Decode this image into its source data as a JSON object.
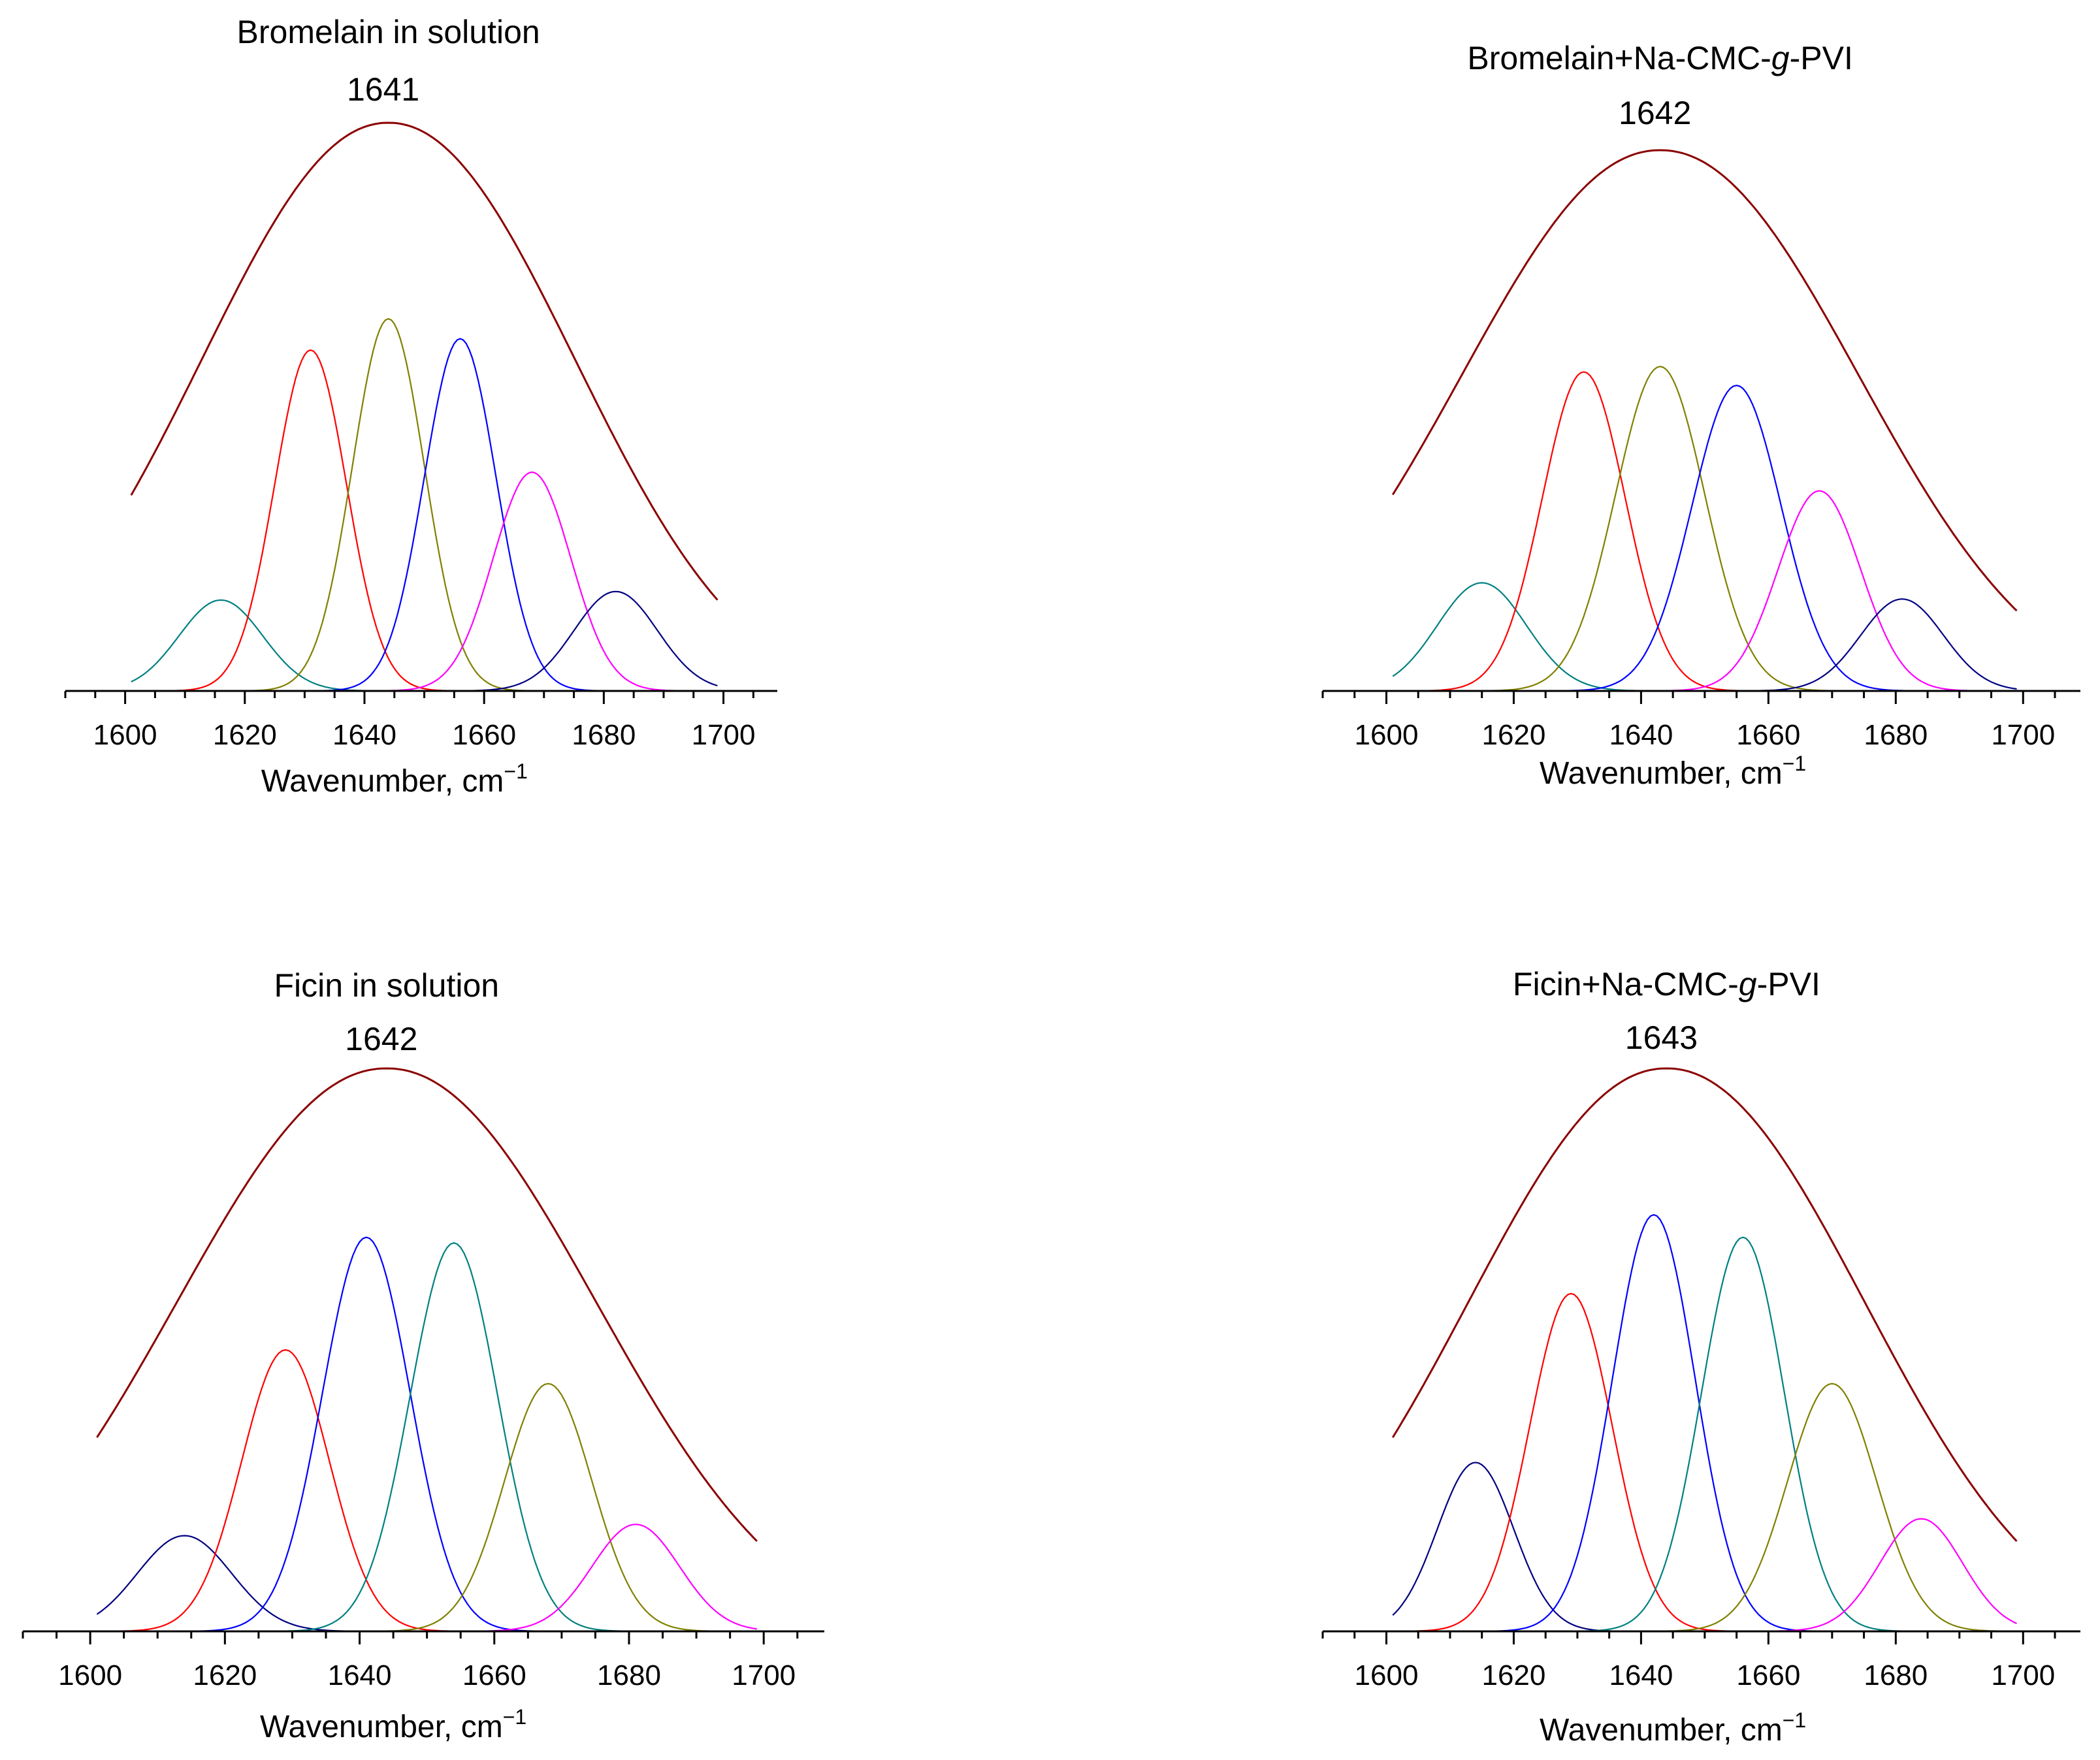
{
  "chart_data": [
    {
      "type": "line",
      "title": "Bromelain in solution",
      "title_parts": [
        {
          "text": "Bromelain in solution",
          "italic": false
        }
      ],
      "peak_label": "1641",
      "xlabel": "Wavenumber, cm",
      "xlabel_sup": "−1",
      "xlim": [
        1590,
        1709
      ],
      "xticks": [
        1600,
        1620,
        1640,
        1660,
        1680,
        1700
      ],
      "x_range": [
        1601,
        1699
      ],
      "ylim": [
        0,
        1.0
      ],
      "envelope": {
        "name": "envelope",
        "color": "#8B0000",
        "center": 1644,
        "amplitude": 1.0,
        "width": 31
      },
      "bands": [
        {
          "name": "band 1616",
          "color": "#008080",
          "center": 1616,
          "amplitude": 0.16,
          "width": 7
        },
        {
          "name": "band 1631",
          "color": "#FF0000",
          "center": 1631,
          "amplitude": 0.6,
          "width": 6
        },
        {
          "name": "band 1644",
          "color": "#808000",
          "center": 1644,
          "amplitude": 0.655,
          "width": 6
        },
        {
          "name": "band 1656",
          "color": "#0000FF",
          "center": 1656,
          "amplitude": 0.62,
          "width": 6
        },
        {
          "name": "band 1668",
          "color": "#FF00FF",
          "center": 1668,
          "amplitude": 0.385,
          "width": 6.5
        },
        {
          "name": "band 1682",
          "color": "#000080",
          "center": 1682,
          "amplitude": 0.175,
          "width": 7
        }
      ]
    },
    {
      "type": "line",
      "title": "Bromelain+Na-CMC-g-PVI",
      "title_parts": [
        {
          "text": "Bromelain+Na-CMC-",
          "italic": false
        },
        {
          "text": "g",
          "italic": true
        },
        {
          "text": "-PVI",
          "italic": false
        }
      ],
      "peak_label": "1642",
      "xlabel": "Wavenumber, cm",
      "xlabel_sup": "−1",
      "xlim": [
        1590,
        1709
      ],
      "xticks": [
        1600,
        1620,
        1640,
        1660,
        1680,
        1700
      ],
      "x_range": [
        1601,
        1699
      ],
      "ylim": [
        0,
        1.0
      ],
      "envelope": {
        "name": "envelope",
        "color": "#8B0000",
        "center": 1643,
        "amplitude": 1.0,
        "width": 31
      },
      "bands": [
        {
          "name": "band 1615",
          "color": "#008080",
          "center": 1615,
          "amplitude": 0.2,
          "width": 7
        },
        {
          "name": "band 1631",
          "color": "#FF0000",
          "center": 1631,
          "amplitude": 0.59,
          "width": 6.5
        },
        {
          "name": "band 1643",
          "color": "#808000",
          "center": 1643,
          "amplitude": 0.6,
          "width": 7
        },
        {
          "name": "band 1655",
          "color": "#0000FF",
          "center": 1655,
          "amplitude": 0.565,
          "width": 7
        },
        {
          "name": "band 1668",
          "color": "#FF00FF",
          "center": 1668,
          "amplitude": 0.37,
          "width": 6.5
        },
        {
          "name": "band 1681",
          "color": "#000080",
          "center": 1681,
          "amplitude": 0.17,
          "width": 6.5
        }
      ]
    },
    {
      "type": "line",
      "title": "Ficin in solution",
      "title_parts": [
        {
          "text": "Ficin in solution",
          "italic": false
        }
      ],
      "peak_label": "1642",
      "xlabel": "Wavenumber, cm",
      "xlabel_sup": "−1",
      "xlim": [
        1590,
        1709
      ],
      "xticks": [
        1600,
        1620,
        1640,
        1660,
        1680,
        1700
      ],
      "x_range": [
        1601,
        1699
      ],
      "ylim": [
        0,
        1.0
      ],
      "envelope": {
        "name": "envelope",
        "color": "#8B0000",
        "center": 1644,
        "amplitude": 1.0,
        "width": 31
      },
      "bands": [
        {
          "name": "band 1614",
          "color": "#000080",
          "center": 1614,
          "amplitude": 0.17,
          "width": 7
        },
        {
          "name": "band 1629",
          "color": "#FF0000",
          "center": 1629,
          "amplitude": 0.5,
          "width": 6.5
        },
        {
          "name": "band 1641",
          "color": "#0000FF",
          "center": 1641,
          "amplitude": 0.7,
          "width": 6.5
        },
        {
          "name": "band 1654",
          "color": "#008080",
          "center": 1654,
          "amplitude": 0.69,
          "width": 6.5
        },
        {
          "name": "band 1668",
          "color": "#808000",
          "center": 1668,
          "amplitude": 0.44,
          "width": 6.5
        },
        {
          "name": "band 1681",
          "color": "#FF00FF",
          "center": 1681,
          "amplitude": 0.19,
          "width": 6.5
        }
      ]
    },
    {
      "type": "line",
      "title": "Ficin+Na-CMC-g-PVI",
      "title_parts": [
        {
          "text": "Ficin+Na-CMC-",
          "italic": false
        },
        {
          "text": "g",
          "italic": true
        },
        {
          "text": "-PVI",
          "italic": false
        }
      ],
      "peak_label": "1643",
      "xlabel": "Wavenumber, cm",
      "xlabel_sup": "−1",
      "xlim": [
        1590,
        1709
      ],
      "xticks": [
        1600,
        1620,
        1640,
        1660,
        1680,
        1700
      ],
      "x_range": [
        1601,
        1699
      ],
      "ylim": [
        0,
        1.0
      ],
      "envelope": {
        "name": "envelope",
        "color": "#8B0000",
        "center": 1644,
        "amplitude": 1.0,
        "width": 31
      },
      "bands": [
        {
          "name": "band 1614",
          "color": "#000080",
          "center": 1614,
          "amplitude": 0.3,
          "width": 6
        },
        {
          "name": "band 1629",
          "color": "#FF0000",
          "center": 1629,
          "amplitude": 0.6,
          "width": 6.5
        },
        {
          "name": "band 1642",
          "color": "#0000FF",
          "center": 1642,
          "amplitude": 0.74,
          "width": 6.5
        },
        {
          "name": "band 1656",
          "color": "#008080",
          "center": 1656,
          "amplitude": 0.7,
          "width": 6.5
        },
        {
          "name": "band 1670",
          "color": "#808000",
          "center": 1670,
          "amplitude": 0.44,
          "width": 7
        },
        {
          "name": "band 1684",
          "color": "#FF00FF",
          "center": 1684,
          "amplitude": 0.2,
          "width": 6.5
        }
      ]
    }
  ]
}
